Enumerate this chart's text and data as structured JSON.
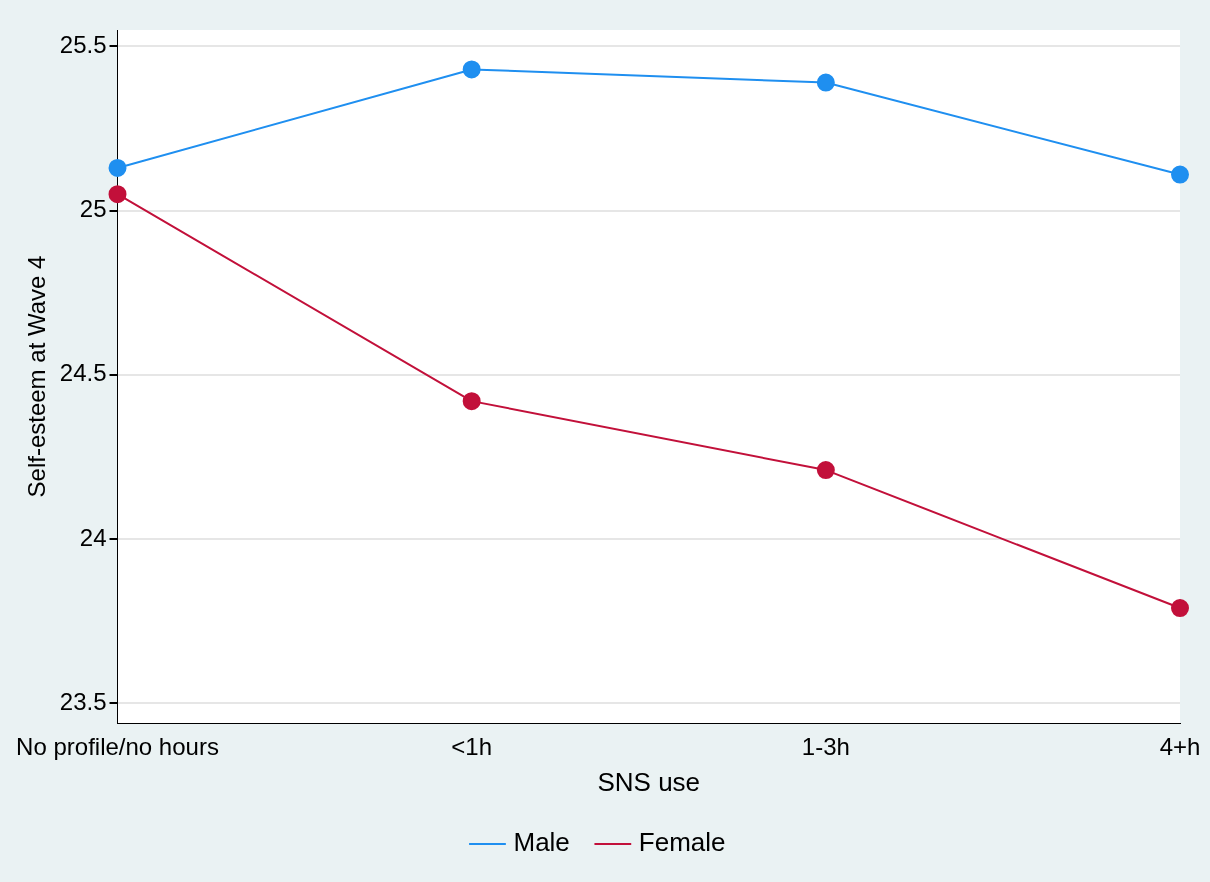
{
  "chart_data": {
    "type": "line",
    "xlabel": "SNS use",
    "ylabel": "Self-esteem at Wave 4",
    "categories": [
      "No profile/no hours",
      "<1h",
      "1-3h",
      "4+h"
    ],
    "series": [
      {
        "name": "Male",
        "color": "#1f8ff0",
        "values": [
          25.13,
          25.43,
          25.39,
          25.11
        ]
      },
      {
        "name": "Female",
        "color": "#c2103a",
        "values": [
          25.05,
          24.42,
          24.21,
          23.79
        ]
      }
    ],
    "ylim": [
      23.44,
      25.55
    ],
    "yticks": [
      23.5,
      24,
      24.5,
      25,
      25.5
    ],
    "grid": "y",
    "legend": "bottom",
    "marker": "circle",
    "line_style": "solid"
  }
}
